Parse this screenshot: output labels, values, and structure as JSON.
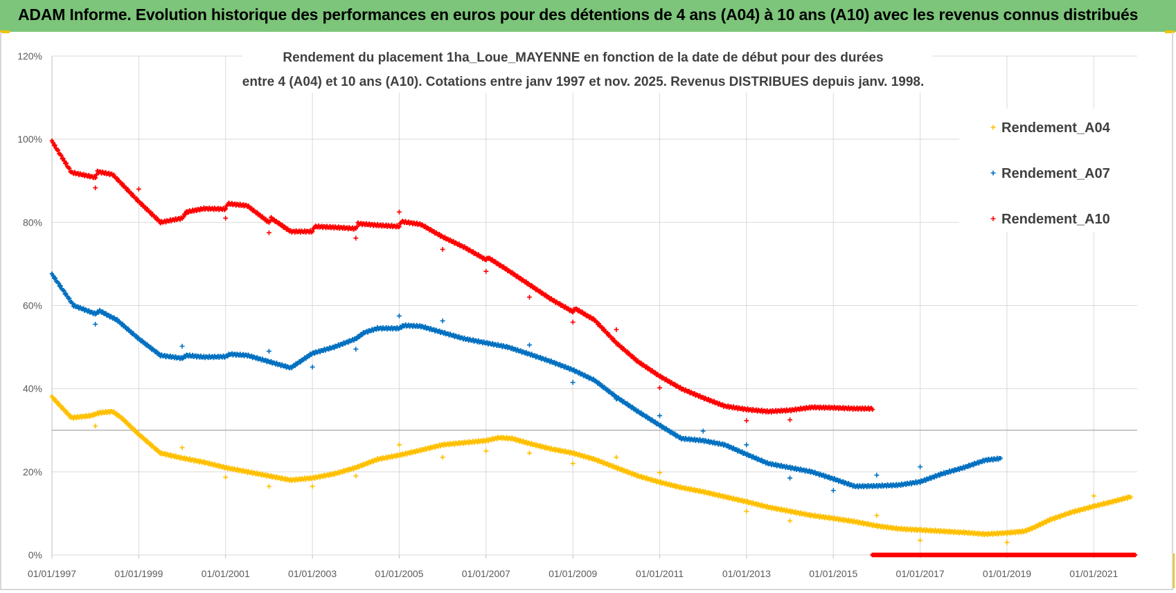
{
  "banner": {
    "title": "ADAM Informe. Evolution historique des performances en euros pour des détentions de 4 ans (A04) à 10 ans (A10) avec les revenus connus distribués"
  },
  "colors": {
    "banner": "#7cc57a",
    "A04": "#ffc000",
    "A07": "#0070c0",
    "A10": "#ff0000",
    "grid": "#d9d9d9"
  },
  "chart_data": {
    "type": "scatter",
    "title_lines": [
      "Rendement du placement 1ha_Loue_MAYENNE  en fonction de la date de début pour des durées",
      "entre 4 (A04) et 10 ans (A10).  Cotations entre janv 1997 et nov. 2025. Revenus DISTRIBUES depuis janv. 1998."
    ],
    "xlim": [
      1997.0,
      2022.0
    ],
    "ylim": [
      0,
      120
    ],
    "x_tick_labels": [
      "01/01/1997",
      "01/01/1999",
      "01/01/2001",
      "01/01/2003",
      "01/01/2005",
      "01/01/2007",
      "01/01/2009",
      "01/01/2011",
      "01/01/2013",
      "01/01/2015",
      "01/01/2017",
      "01/01/2019",
      "01/01/2021"
    ],
    "x_tick_values": [
      1997,
      1999,
      2001,
      2003,
      2005,
      2007,
      2009,
      2011,
      2013,
      2015,
      2017,
      2019,
      2021
    ],
    "y_tick_labels": [
      "0%",
      "20%",
      "40%",
      "60%",
      "80%",
      "100%",
      "120%"
    ],
    "y_tick_values": [
      0,
      20,
      40,
      60,
      80,
      100,
      120
    ],
    "legend_position": "top-right",
    "series": [
      {
        "name": "Rendement_A04",
        "color_key": "A04",
        "points": [
          [
            1997.0,
            38
          ],
          [
            1997.45,
            33
          ],
          [
            1997.9,
            33.5
          ],
          [
            1998.1,
            34.2
          ],
          [
            1998.4,
            34.5
          ],
          [
            1998.6,
            33
          ],
          [
            1999.0,
            29
          ],
          [
            1999.5,
            24.5
          ],
          [
            2000.0,
            23.3
          ],
          [
            2000.5,
            22.3
          ],
          [
            2001.0,
            21
          ],
          [
            2001.5,
            20
          ],
          [
            2002.0,
            19
          ],
          [
            2002.5,
            18
          ],
          [
            2003.0,
            18.5
          ],
          [
            2003.5,
            19.5
          ],
          [
            2004.0,
            21
          ],
          [
            2004.5,
            23
          ],
          [
            2005.0,
            24
          ],
          [
            2005.5,
            25.2
          ],
          [
            2006.0,
            26.5
          ],
          [
            2006.5,
            27
          ],
          [
            2007.0,
            27.5
          ],
          [
            2007.3,
            28.2
          ],
          [
            2007.6,
            28
          ],
          [
            2008.0,
            26.8
          ],
          [
            2008.5,
            25.5
          ],
          [
            2009.0,
            24.5
          ],
          [
            2009.5,
            23
          ],
          [
            2010.0,
            21
          ],
          [
            2010.5,
            19
          ],
          [
            2011.0,
            17.5
          ],
          [
            2011.5,
            16.2
          ],
          [
            2012.0,
            15.2
          ],
          [
            2012.5,
            14
          ],
          [
            2013.0,
            12.8
          ],
          [
            2013.5,
            11.5
          ],
          [
            2014.0,
            10.5
          ],
          [
            2014.5,
            9.5
          ],
          [
            2015.0,
            8.8
          ],
          [
            2015.5,
            8
          ],
          [
            2016.0,
            7
          ],
          [
            2016.5,
            6.3
          ],
          [
            2017.0,
            6
          ],
          [
            2017.5,
            5.7
          ],
          [
            2018.0,
            5.4
          ],
          [
            2018.5,
            5
          ],
          [
            2019.0,
            5.3
          ],
          [
            2019.4,
            5.7
          ],
          [
            2019.6,
            6.5
          ],
          [
            2020.0,
            8.5
          ],
          [
            2020.5,
            10.3
          ],
          [
            2021.0,
            11.7
          ],
          [
            2021.5,
            13
          ],
          [
            2021.85,
            14
          ]
        ],
        "outliers": [
          [
            1998.0,
            31
          ],
          [
            2000.0,
            25.8
          ],
          [
            2001.0,
            18.7
          ],
          [
            2002.0,
            16.5
          ],
          [
            2003.0,
            16.5
          ],
          [
            2004.0,
            19
          ],
          [
            2005.0,
            26.5
          ],
          [
            2006.0,
            23.5
          ],
          [
            2007.0,
            25
          ],
          [
            2008.0,
            24.5
          ],
          [
            2009.0,
            22
          ],
          [
            2010.0,
            23.5
          ],
          [
            2011.0,
            19.8
          ],
          [
            2013.0,
            10.5
          ],
          [
            2014.0,
            8.2
          ],
          [
            2016.0,
            9.5
          ],
          [
            2017.0,
            3.5
          ],
          [
            2019.0,
            3
          ],
          [
            2021.0,
            14.2
          ]
        ]
      },
      {
        "name": "Rendement_A07",
        "color_key": "A07",
        "points": [
          [
            1997.0,
            67.5
          ],
          [
            1997.5,
            60
          ],
          [
            1998.0,
            58
          ],
          [
            1998.1,
            58.7
          ],
          [
            1998.5,
            56.5
          ],
          [
            1999.0,
            52
          ],
          [
            1999.5,
            48
          ],
          [
            2000.0,
            47.3
          ],
          [
            2000.1,
            48
          ],
          [
            2000.5,
            47.6
          ],
          [
            2001.0,
            47.7
          ],
          [
            2001.1,
            48.3
          ],
          [
            2001.5,
            48
          ],
          [
            2002.0,
            46.5
          ],
          [
            2002.5,
            45
          ],
          [
            2003.0,
            48.5
          ],
          [
            2003.5,
            50
          ],
          [
            2004.0,
            52
          ],
          [
            2004.2,
            53.5
          ],
          [
            2004.5,
            54.5
          ],
          [
            2005.0,
            54.5
          ],
          [
            2005.1,
            55.2
          ],
          [
            2005.5,
            55
          ],
          [
            2006.0,
            53.5
          ],
          [
            2006.5,
            52
          ],
          [
            2007.0,
            51
          ],
          [
            2007.5,
            50
          ],
          [
            2008.0,
            48.3
          ],
          [
            2008.5,
            46.5
          ],
          [
            2009.0,
            44.5
          ],
          [
            2009.5,
            42
          ],
          [
            2010.0,
            38
          ],
          [
            2010.5,
            34.5
          ],
          [
            2011.0,
            31.2
          ],
          [
            2011.5,
            28
          ],
          [
            2012.0,
            27.5
          ],
          [
            2012.5,
            26.5
          ],
          [
            2013.0,
            24.2
          ],
          [
            2013.5,
            22
          ],
          [
            2014.0,
            21
          ],
          [
            2014.5,
            20
          ],
          [
            2015.0,
            18.3
          ],
          [
            2015.5,
            16.5
          ],
          [
            2016.0,
            16.6
          ],
          [
            2016.5,
            16.8
          ],
          [
            2017.0,
            17.6
          ],
          [
            2017.5,
            19.5
          ],
          [
            2018.0,
            21
          ],
          [
            2018.5,
            22.8
          ],
          [
            2018.85,
            23.2
          ]
        ],
        "outliers": [
          [
            1998.0,
            55.5
          ],
          [
            2000.0,
            50.2
          ],
          [
            2002.0,
            49
          ],
          [
            2003.0,
            45.2
          ],
          [
            2004.0,
            49.5
          ],
          [
            2005.0,
            57.5
          ],
          [
            2006.0,
            56.3
          ],
          [
            2008.0,
            50.5
          ],
          [
            2009.0,
            41.5
          ],
          [
            2010.0,
            37.5
          ],
          [
            2011.0,
            33.5
          ],
          [
            2012.0,
            29.8
          ],
          [
            2013.0,
            26.5
          ],
          [
            2014.0,
            18.5
          ],
          [
            2015.0,
            15.5
          ],
          [
            2016.0,
            19.2
          ],
          [
            2017.0,
            21.2
          ]
        ]
      },
      {
        "name": "Rendement_A10",
        "color_key": "A10",
        "points": [
          [
            1997.0,
            99.5
          ],
          [
            1997.45,
            92
          ],
          [
            1998.0,
            90.8
          ],
          [
            1998.05,
            92.2
          ],
          [
            1998.4,
            91.5
          ],
          [
            1999.0,
            85
          ],
          [
            1999.5,
            80
          ],
          [
            2000.0,
            81
          ],
          [
            2000.1,
            82.5
          ],
          [
            2000.5,
            83.3
          ],
          [
            2001.0,
            83.2
          ],
          [
            2001.05,
            84.5
          ],
          [
            2001.5,
            84
          ],
          [
            2002.0,
            80
          ],
          [
            2002.05,
            81
          ],
          [
            2002.5,
            77.8
          ],
          [
            2003.0,
            77.8
          ],
          [
            2003.05,
            79
          ],
          [
            2003.5,
            78.8
          ],
          [
            2004.0,
            78.5
          ],
          [
            2004.05,
            79.7
          ],
          [
            2004.5,
            79.3
          ],
          [
            2005.0,
            79
          ],
          [
            2005.05,
            80.2
          ],
          [
            2005.5,
            79.5
          ],
          [
            2006.0,
            76.5
          ],
          [
            2006.5,
            74
          ],
          [
            2007.0,
            71
          ],
          [
            2007.05,
            71.5
          ],
          [
            2007.5,
            68.5
          ],
          [
            2008.0,
            65
          ],
          [
            2008.5,
            61.5
          ],
          [
            2009.0,
            58.5
          ],
          [
            2009.05,
            59.3
          ],
          [
            2009.5,
            56.5
          ],
          [
            2010.0,
            51
          ],
          [
            2010.5,
            46.5
          ],
          [
            2011.0,
            43
          ],
          [
            2011.5,
            40
          ],
          [
            2012.0,
            37.8
          ],
          [
            2012.5,
            35.8
          ],
          [
            2013.0,
            35
          ],
          [
            2013.5,
            34.5
          ],
          [
            2014.0,
            34.8
          ],
          [
            2014.5,
            35.5
          ],
          [
            2015.0,
            35.4
          ],
          [
            2015.5,
            35.2
          ],
          [
            2015.9,
            35.2
          ]
        ],
        "zero_segment": [
          [
            2015.9,
            0
          ],
          [
            2021.95,
            0
          ]
        ],
        "outliers": [
          [
            1998.0,
            88.3
          ],
          [
            1999.0,
            88
          ],
          [
            2001.0,
            81
          ],
          [
            2002.0,
            77.5
          ],
          [
            2004.0,
            76.2
          ],
          [
            2005.0,
            82.5
          ],
          [
            2006.0,
            73.5
          ],
          [
            2007.0,
            68.2
          ],
          [
            2008.0,
            62
          ],
          [
            2009.0,
            56
          ],
          [
            2010.0,
            54.2
          ],
          [
            2011.0,
            40.2
          ],
          [
            2013.0,
            32.3
          ],
          [
            2014.0,
            32.5
          ]
        ]
      }
    ]
  }
}
